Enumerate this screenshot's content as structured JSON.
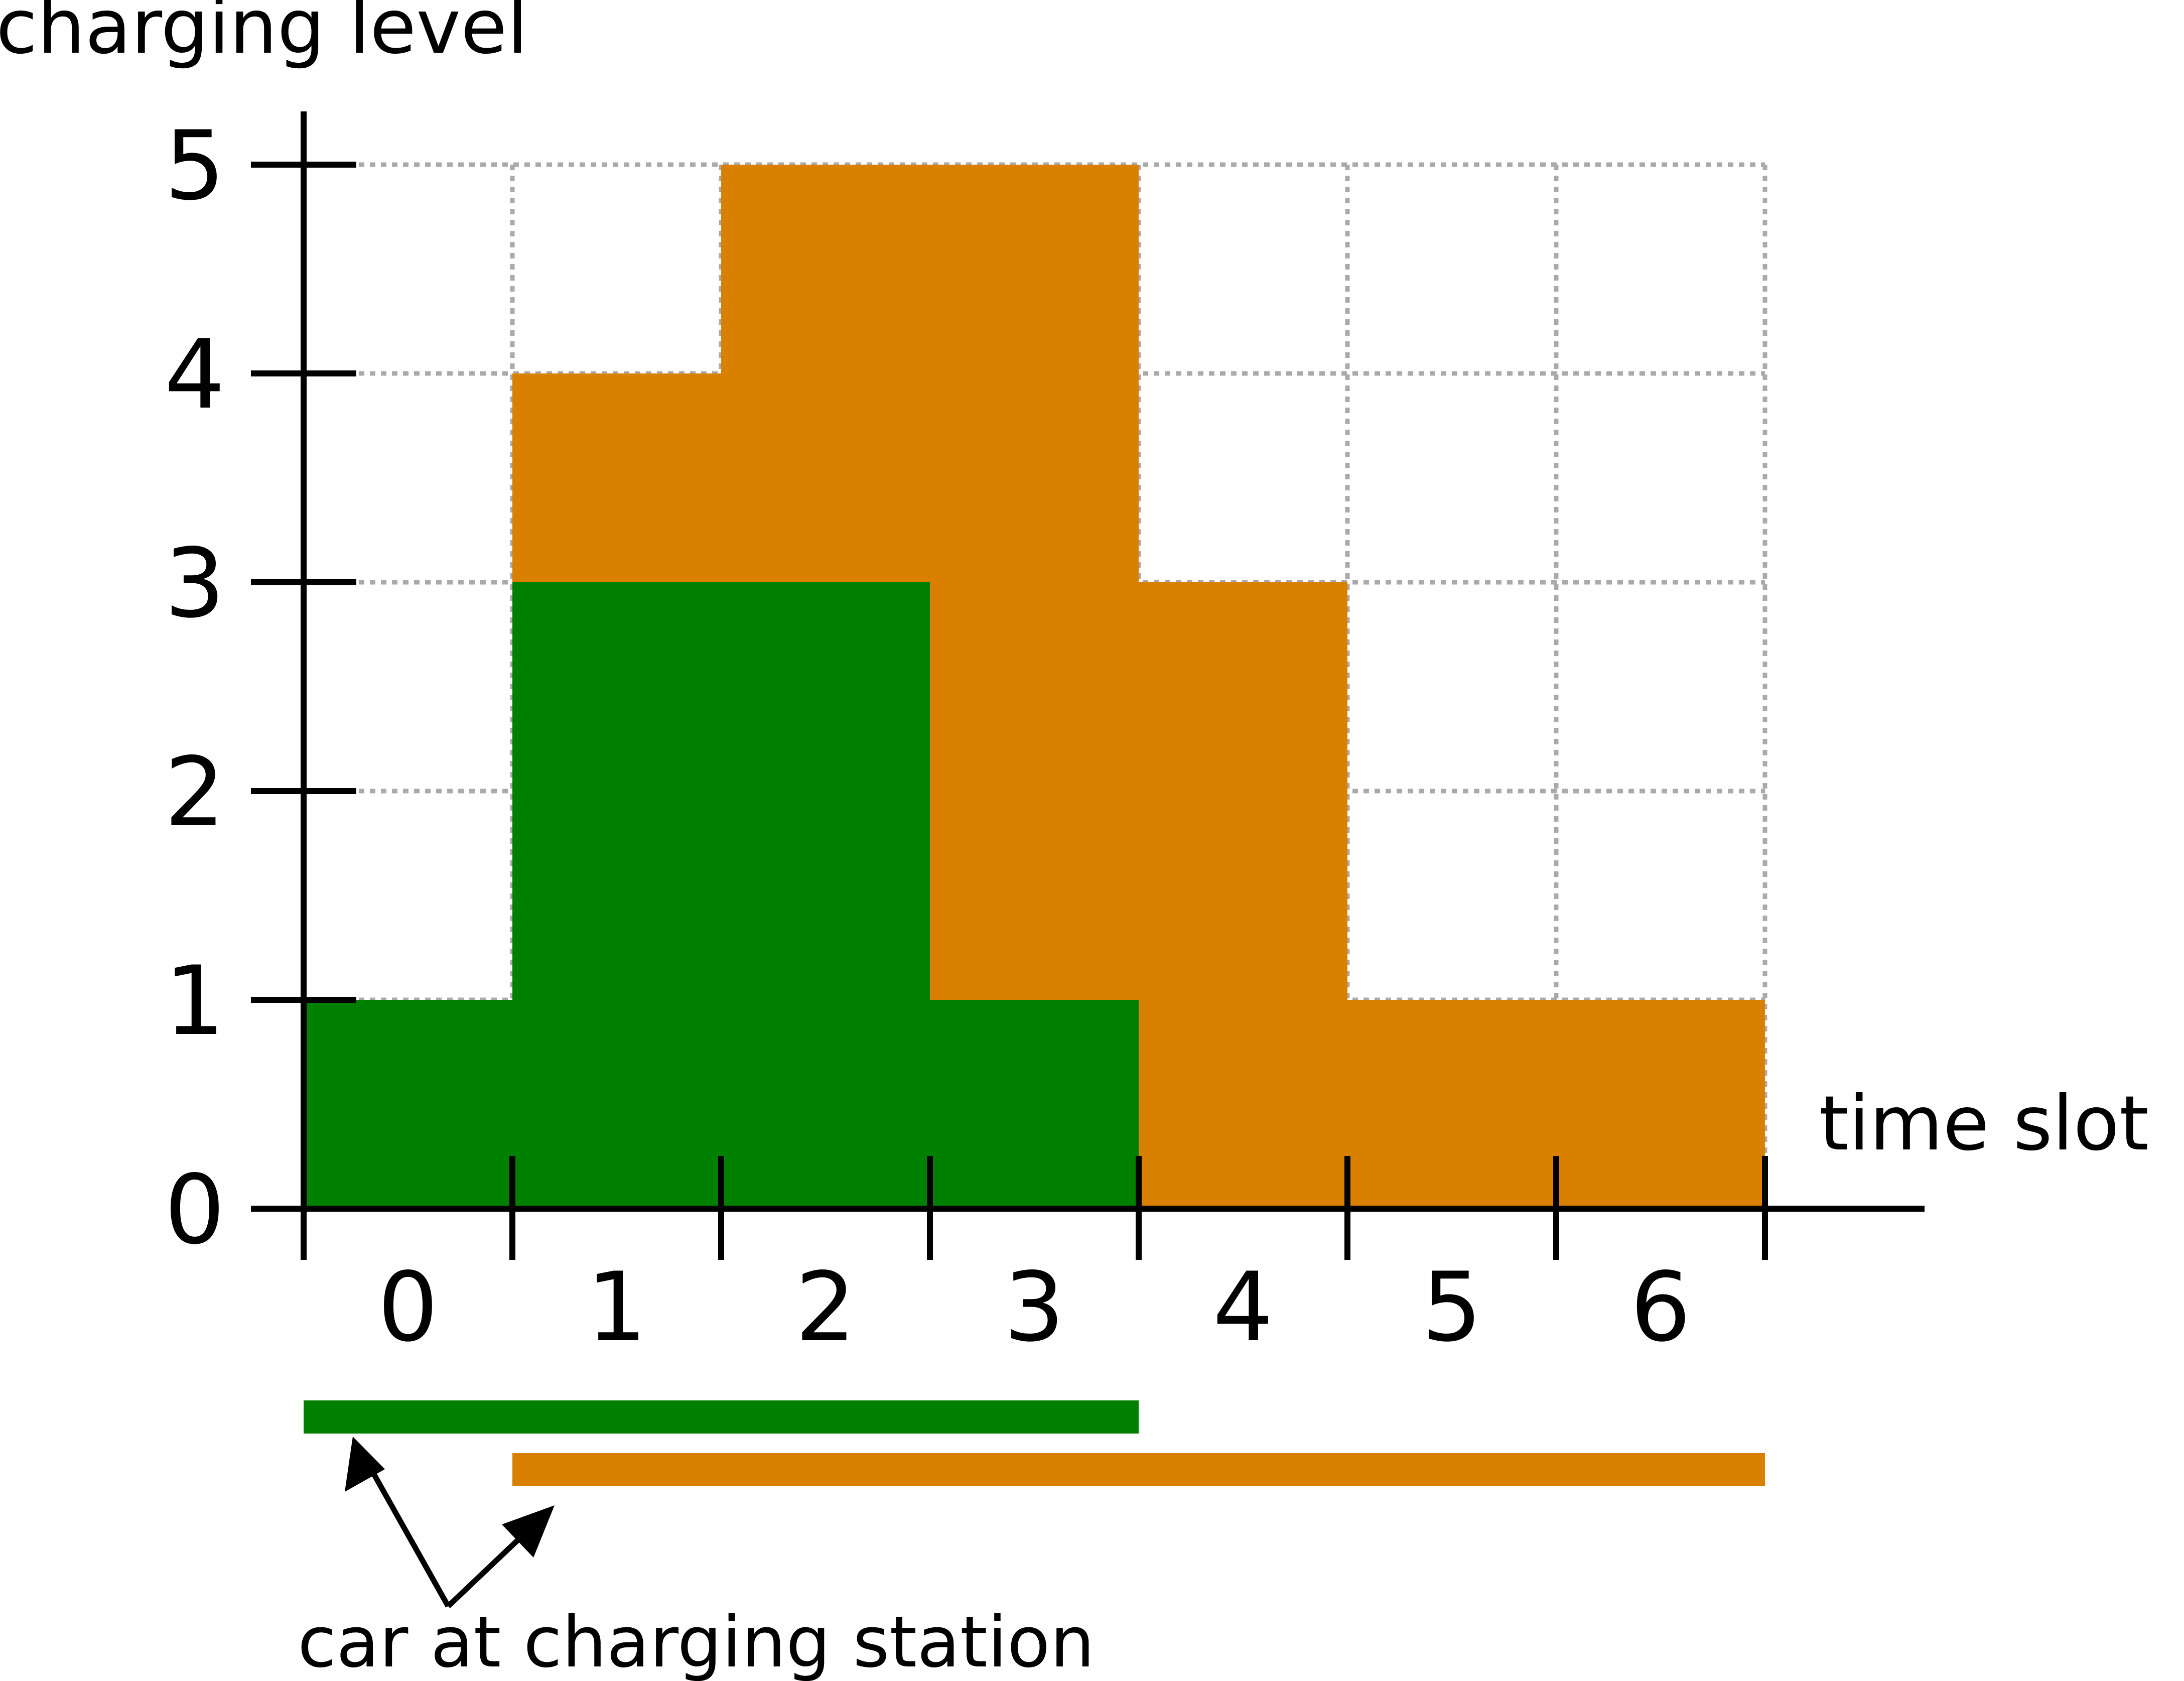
{
  "chart_data": {
    "type": "bar",
    "stacked": true,
    "xlabel": "time slot",
    "ylabel": "charging level",
    "categories": [
      "0",
      "1",
      "2",
      "3",
      "4",
      "5",
      "6"
    ],
    "yticks": [
      "0",
      "1",
      "2",
      "3",
      "4",
      "5"
    ],
    "ylim": [
      0,
      5
    ],
    "grid": true,
    "series": [
      {
        "color": "#008000",
        "values": [
          1,
          3,
          3,
          1,
          0,
          0,
          0
        ],
        "availability": [
          0,
          4
        ]
      },
      {
        "color": "#d98000",
        "values": [
          0,
          1,
          2,
          4,
          3,
          1,
          1
        ],
        "availability": [
          1,
          7
        ]
      }
    ],
    "annotation": "car at charging station"
  }
}
